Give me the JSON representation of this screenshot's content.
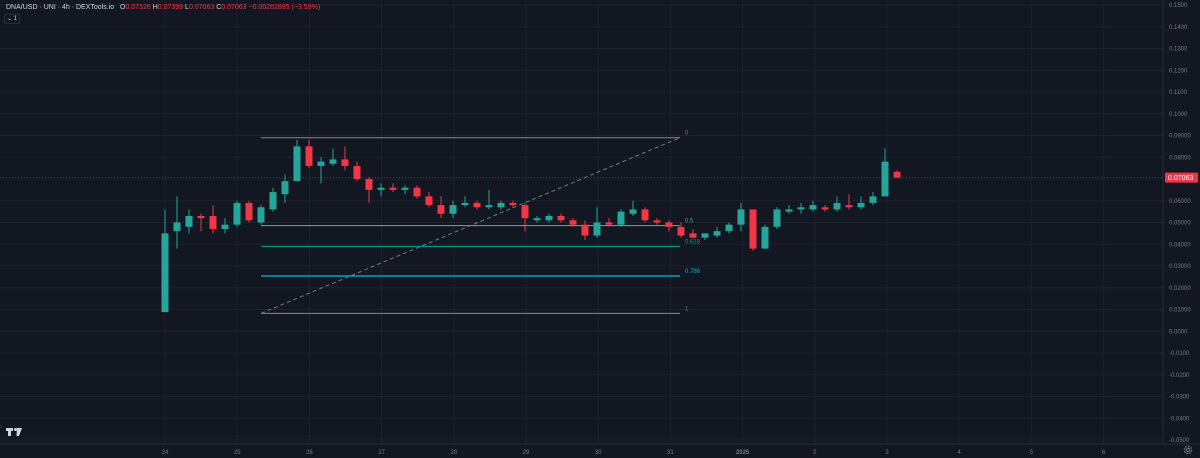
{
  "legend": {
    "symbol": "DNA/USD · UNI · 4h · DEXTools.io",
    "o_label": "O",
    "o_value": "0.07326",
    "h_label": "H",
    "h_value": "0.07399",
    "l_label": "L",
    "l_value": "0.07063",
    "c_label": "C",
    "c_value": "0.07063",
    "change": "−0.00262885 (−3.59%)"
  },
  "collapse_button": "⌄ 1",
  "colors": {
    "up": "#26a69a",
    "down": "#f23645",
    "grid": "#1e222d",
    "fib_0": "#787b86",
    "fib_05": "#4caf50",
    "fib_0618": "#089981",
    "fib_0786": "#00bcd4",
    "fib_1": "#787b86",
    "trend": "#787b86"
  },
  "chart_data": {
    "type": "candlestick",
    "interval": "4h",
    "x_ticks": [
      "24",
      "25",
      "26",
      "27",
      "28",
      "29",
      "30",
      "31",
      "2025",
      "2",
      "3",
      "4",
      "5",
      "6"
    ],
    "y_ticks": [
      "0.1500",
      "0.1400",
      "0.1300",
      "0.1200",
      "0.1100",
      "0.1000",
      "0.09000",
      "0.08000",
      "0.07000",
      "0.06000",
      "0.05000",
      "0.04000",
      "0.03000",
      "0.02000",
      "0.01000",
      "0.0000",
      "-0.0100",
      "-0.0200",
      "-0.0300",
      "-0.0400",
      "-0.0500"
    ],
    "y_tick_values": [
      0.15,
      0.14,
      0.13,
      0.12,
      0.11,
      0.1,
      0.09,
      0.08,
      0.07,
      0.06,
      0.05,
      0.04,
      0.03,
      0.02,
      0.01,
      0.0,
      -0.01,
      -0.02,
      -0.03,
      -0.04,
      -0.05
    ],
    "ylim": [
      -0.05,
      0.155
    ],
    "last_price": "0.07063",
    "last_price_value": 0.07063,
    "candles": [
      {
        "o": 0.0088,
        "h": 0.056,
        "l": 0.0088,
        "c": 0.045
      },
      {
        "o": 0.046,
        "h": 0.062,
        "l": 0.038,
        "c": 0.05
      },
      {
        "o": 0.048,
        "h": 0.056,
        "l": 0.045,
        "c": 0.053
      },
      {
        "o": 0.053,
        "h": 0.054,
        "l": 0.046,
        "c": 0.052
      },
      {
        "o": 0.053,
        "h": 0.058,
        "l": 0.045,
        "c": 0.047
      },
      {
        "o": 0.047,
        "h": 0.052,
        "l": 0.045,
        "c": 0.049
      },
      {
        "o": 0.049,
        "h": 0.06,
        "l": 0.048,
        "c": 0.059
      },
      {
        "o": 0.059,
        "h": 0.06,
        "l": 0.05,
        "c": 0.051
      },
      {
        "o": 0.05,
        "h": 0.058,
        "l": 0.049,
        "c": 0.057
      },
      {
        "o": 0.056,
        "h": 0.066,
        "l": 0.055,
        "c": 0.064
      },
      {
        "o": 0.063,
        "h": 0.072,
        "l": 0.059,
        "c": 0.069
      },
      {
        "o": 0.069,
        "h": 0.088,
        "l": 0.069,
        "c": 0.085
      },
      {
        "o": 0.085,
        "h": 0.088,
        "l": 0.075,
        "c": 0.076
      },
      {
        "o": 0.076,
        "h": 0.08,
        "l": 0.068,
        "c": 0.078
      },
      {
        "o": 0.077,
        "h": 0.084,
        "l": 0.076,
        "c": 0.079
      },
      {
        "o": 0.079,
        "h": 0.085,
        "l": 0.074,
        "c": 0.076
      },
      {
        "o": 0.076,
        "h": 0.078,
        "l": 0.069,
        "c": 0.07
      },
      {
        "o": 0.07,
        "h": 0.071,
        "l": 0.059,
        "c": 0.065
      },
      {
        "o": 0.065,
        "h": 0.068,
        "l": 0.062,
        "c": 0.066
      },
      {
        "o": 0.066,
        "h": 0.068,
        "l": 0.064,
        "c": 0.065
      },
      {
        "o": 0.065,
        "h": 0.067,
        "l": 0.063,
        "c": 0.066
      },
      {
        "o": 0.066,
        "h": 0.067,
        "l": 0.061,
        "c": 0.062
      },
      {
        "o": 0.062,
        "h": 0.064,
        "l": 0.057,
        "c": 0.058
      },
      {
        "o": 0.058,
        "h": 0.062,
        "l": 0.052,
        "c": 0.054
      },
      {
        "o": 0.054,
        "h": 0.06,
        "l": 0.052,
        "c": 0.058
      },
      {
        "o": 0.058,
        "h": 0.062,
        "l": 0.057,
        "c": 0.059
      },
      {
        "o": 0.059,
        "h": 0.06,
        "l": 0.056,
        "c": 0.057
      },
      {
        "o": 0.057,
        "h": 0.065,
        "l": 0.056,
        "c": 0.058
      },
      {
        "o": 0.057,
        "h": 0.06,
        "l": 0.056,
        "c": 0.059
      },
      {
        "o": 0.059,
        "h": 0.06,
        "l": 0.057,
        "c": 0.058
      },
      {
        "o": 0.058,
        "h": 0.059,
        "l": 0.046,
        "c": 0.052
      },
      {
        "o": 0.051,
        "h": 0.053,
        "l": 0.05,
        "c": 0.052
      },
      {
        "o": 0.051,
        "h": 0.054,
        "l": 0.05,
        "c": 0.053
      },
      {
        "o": 0.053,
        "h": 0.054,
        "l": 0.05,
        "c": 0.051
      },
      {
        "o": 0.051,
        "h": 0.052,
        "l": 0.048,
        "c": 0.049
      },
      {
        "o": 0.049,
        "h": 0.051,
        "l": 0.042,
        "c": 0.044
      },
      {
        "o": 0.044,
        "h": 0.057,
        "l": 0.043,
        "c": 0.05
      },
      {
        "o": 0.05,
        "h": 0.052,
        "l": 0.048,
        "c": 0.049
      },
      {
        "o": 0.049,
        "h": 0.056,
        "l": 0.048,
        "c": 0.055
      },
      {
        "o": 0.054,
        "h": 0.06,
        "l": 0.053,
        "c": 0.056
      },
      {
        "o": 0.056,
        "h": 0.057,
        "l": 0.05,
        "c": 0.051
      },
      {
        "o": 0.051,
        "h": 0.052,
        "l": 0.049,
        "c": 0.05
      },
      {
        "o": 0.05,
        "h": 0.051,
        "l": 0.046,
        "c": 0.048
      },
      {
        "o": 0.048,
        "h": 0.05,
        "l": 0.043,
        "c": 0.044
      },
      {
        "o": 0.045,
        "h": 0.047,
        "l": 0.043,
        "c": 0.043
      },
      {
        "o": 0.043,
        "h": 0.045,
        "l": 0.042,
        "c": 0.045
      },
      {
        "o": 0.044,
        "h": 0.048,
        "l": 0.043,
        "c": 0.046
      },
      {
        "o": 0.046,
        "h": 0.05,
        "l": 0.045,
        "c": 0.049
      },
      {
        "o": 0.049,
        "h": 0.059,
        "l": 0.046,
        "c": 0.056
      },
      {
        "o": 0.056,
        "h": 0.056,
        "l": 0.037,
        "c": 0.038
      },
      {
        "o": 0.038,
        "h": 0.049,
        "l": 0.038,
        "c": 0.048
      },
      {
        "o": 0.048,
        "h": 0.057,
        "l": 0.047,
        "c": 0.056
      },
      {
        "o": 0.055,
        "h": 0.058,
        "l": 0.054,
        "c": 0.056
      },
      {
        "o": 0.056,
        "h": 0.059,
        "l": 0.054,
        "c": 0.057
      },
      {
        "o": 0.056,
        "h": 0.06,
        "l": 0.055,
        "c": 0.058
      },
      {
        "o": 0.057,
        "h": 0.058,
        "l": 0.055,
        "c": 0.056
      },
      {
        "o": 0.056,
        "h": 0.062,
        "l": 0.055,
        "c": 0.059
      },
      {
        "o": 0.058,
        "h": 0.063,
        "l": 0.056,
        "c": 0.057
      },
      {
        "o": 0.057,
        "h": 0.062,
        "l": 0.056,
        "c": 0.059
      },
      {
        "o": 0.059,
        "h": 0.064,
        "l": 0.058,
        "c": 0.062
      },
      {
        "o": 0.062,
        "h": 0.084,
        "l": 0.062,
        "c": 0.078
      },
      {
        "o": 0.0733,
        "h": 0.074,
        "l": 0.0706,
        "c": 0.0706
      }
    ],
    "candle_x_start": 24.0,
    "candle_step": 0.1667,
    "trend_line": {
      "x1": 25.33,
      "y1": 0.0082,
      "x2": 27.65,
      "y2": 0.089
    },
    "fib_x_range": [
      25.33,
      30.33
    ],
    "fib_levels": [
      {
        "label": "0",
        "value": 0.089,
        "color_key": "fib_0"
      },
      {
        "label": "0.5",
        "value": 0.0486,
        "color_key": "fib_05"
      },
      {
        "label": "0.618",
        "value": 0.039,
        "color_key": "fib_0618"
      },
      {
        "label": "0.786",
        "value": 0.0254,
        "color_key": "fib_0786"
      },
      {
        "label": "1",
        "value": 0.0082,
        "color_key": "fib_1"
      }
    ]
  }
}
